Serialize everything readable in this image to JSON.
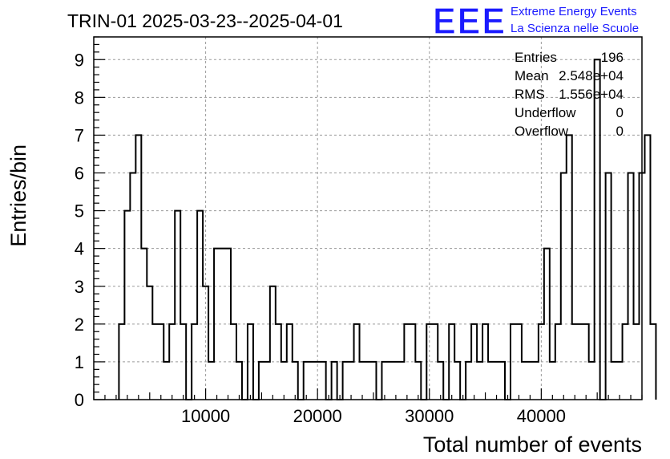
{
  "title": "TRIN-01 2025-03-23--2025-04-01",
  "logo": {
    "mark": "EEE",
    "line1": "Extreme Energy Events",
    "line2": "La Scienza nelle Scuole",
    "color": "#1a1aff"
  },
  "stats": [
    {
      "label": "Entries",
      "value": "196"
    },
    {
      "label": "Mean",
      "value": "2.548e+04"
    },
    {
      "label": "RMS",
      "value": "1.556e+04"
    },
    {
      "label": "Underflow",
      "value": "0"
    },
    {
      "label": "Overflow",
      "value": "0"
    }
  ],
  "chart_data": {
    "type": "histogram",
    "xlabel": "Total number of events",
    "ylabel": "Entries/bin",
    "xlim": [
      0,
      49000
    ],
    "ylim": [
      0,
      9.6
    ],
    "bin_width": 500,
    "first_bin_start": 2250,
    "counts": [
      2,
      5,
      6,
      7,
      4,
      3,
      2,
      2,
      1,
      2,
      5,
      2,
      0,
      2,
      5,
      3,
      1,
      4,
      4,
      4,
      2,
      1,
      0,
      2,
      0,
      1,
      1,
      3,
      2,
      1,
      2,
      1,
      0,
      1,
      1,
      1,
      1,
      0,
      1,
      0,
      1,
      1,
      2,
      1,
      1,
      1,
      0,
      1,
      1,
      1,
      1,
      2,
      2,
      1,
      0,
      2,
      2,
      1,
      0,
      2,
      1,
      0,
      1,
      2,
      1,
      2,
      1,
      1,
      1,
      0,
      2,
      2,
      1,
      1,
      1,
      2,
      4,
      1,
      2,
      6,
      7,
      2,
      2,
      2,
      1,
      9,
      0,
      6,
      1,
      1,
      2,
      6,
      2,
      6,
      7,
      2
    ],
    "x_ticks": [
      10000,
      20000,
      30000,
      40000
    ],
    "y_ticks": [
      0,
      1,
      2,
      3,
      4,
      5,
      6,
      7,
      8,
      9
    ],
    "grid": true,
    "line_color": "#000000"
  }
}
